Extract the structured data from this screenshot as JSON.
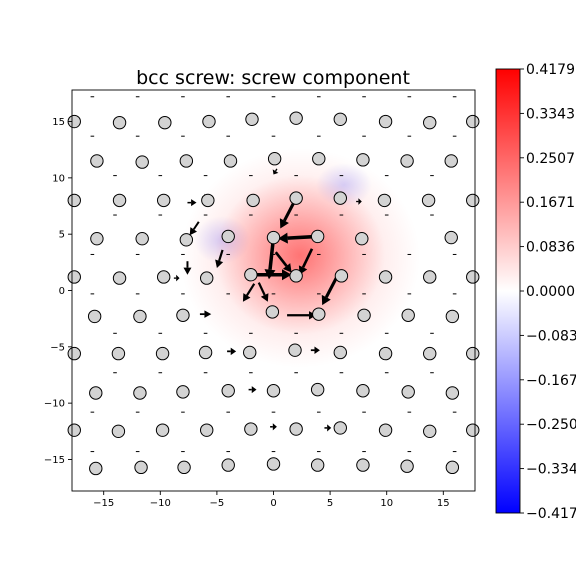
{
  "chart_data": {
    "type": "scatter",
    "title": "bcc screw: screw component",
    "xlabel": "",
    "ylabel": "",
    "xlim": [
      -17.8,
      17.8
    ],
    "ylim": [
      -17.8,
      17.8
    ],
    "x_ticks": [
      -15,
      -10,
      -5,
      0,
      5,
      10,
      15
    ],
    "y_ticks": [
      -15,
      -10,
      -5,
      0,
      5,
      10,
      15
    ],
    "x_tick_labels": [
      "−15",
      "−10",
      "−5",
      "0",
      "5",
      "10",
      "15"
    ],
    "y_tick_labels": [
      "−15",
      "−10",
      "−5",
      "0",
      "5",
      "10",
      "15"
    ],
    "grid": false,
    "colormap": "bwr",
    "colorbar": {
      "range": [
        -0.4179,
        0.4179
      ],
      "tick_labels": [
        "0.4179",
        "0.3343",
        "0.2507",
        "0.1671",
        "0.0836",
        "0.0000",
        "−0.0836",
        "−0.1671",
        "−0.2507",
        "−0.3343",
        "−0.4179"
      ]
    },
    "colors": {
      "positive": "#ff0000",
      "negative": "#0000ff",
      "atom_fill": "#d3d3d3",
      "atom_edge": "#000000",
      "arrow": "#000000"
    },
    "atoms": [
      [
        -17.6,
        15
      ],
      [
        -13.6,
        14.9
      ],
      [
        -9.6,
        14.9
      ],
      [
        -5.7,
        15
      ],
      [
        -1.9,
        15.2
      ],
      [
        2,
        15.3
      ],
      [
        5.9,
        15.2
      ],
      [
        9.9,
        15
      ],
      [
        13.8,
        14.9
      ],
      [
        17.6,
        15
      ],
      [
        -15.6,
        11.5
      ],
      [
        -11.6,
        11.4
      ],
      [
        -7.7,
        11.5
      ],
      [
        -3.8,
        11.5
      ],
      [
        0.1,
        11.7
      ],
      [
        4,
        11.7
      ],
      [
        7.9,
        11.6
      ],
      [
        11.8,
        11.5
      ],
      [
        15.7,
        11.5
      ],
      [
        -17.6,
        8
      ],
      [
        -13.6,
        8
      ],
      [
        -9.7,
        8
      ],
      [
        -5.8,
        8
      ],
      [
        -1.8,
        8
      ],
      [
        2,
        8.2
      ],
      [
        5.9,
        8.2
      ],
      [
        9.8,
        8
      ],
      [
        13.7,
        8
      ],
      [
        17.6,
        8
      ],
      [
        -15.6,
        4.6
      ],
      [
        -11.6,
        4.6
      ],
      [
        -7.7,
        4.5
      ],
      [
        -4,
        4.8
      ],
      [
        0,
        4.7
      ],
      [
        3.9,
        4.8
      ],
      [
        7.8,
        4.6
      ],
      [
        15.7,
        4.7
      ],
      [
        -17.6,
        1.2
      ],
      [
        -13.6,
        1.1
      ],
      [
        -9.7,
        1.2
      ],
      [
        -5.9,
        1.1
      ],
      [
        -2,
        1.4
      ],
      [
        2,
        1.3
      ],
      [
        6,
        1.3
      ],
      [
        9.9,
        1.2
      ],
      [
        13.8,
        1.2
      ],
      [
        17.6,
        1.2
      ],
      [
        -15.8,
        -2.3
      ],
      [
        -11.8,
        -2.3
      ],
      [
        -8,
        -2.2
      ],
      [
        -0.1,
        -1.9
      ],
      [
        4,
        -2.1
      ],
      [
        8,
        -2.2
      ],
      [
        11.9,
        -2.2
      ],
      [
        15.8,
        -2.3
      ],
      [
        -17.6,
        -5.6
      ],
      [
        -13.7,
        -5.6
      ],
      [
        -9.8,
        -5.6
      ],
      [
        -6,
        -5.5
      ],
      [
        -2.1,
        -5.5
      ],
      [
        1.9,
        -5.3
      ],
      [
        5.9,
        -5.5
      ],
      [
        9.9,
        -5.6
      ],
      [
        13.8,
        -5.6
      ],
      [
        17.6,
        -5.6
      ],
      [
        -15.7,
        -9.1
      ],
      [
        -11.8,
        -9.1
      ],
      [
        -8,
        -9
      ],
      [
        -4,
        -8.9
      ],
      [
        0,
        -8.9
      ],
      [
        3.9,
        -8.8
      ],
      [
        7.9,
        -8.9
      ],
      [
        11.9,
        -9
      ],
      [
        15.8,
        -9.1
      ],
      [
        -17.6,
        -12.4
      ],
      [
        -13.7,
        -12.5
      ],
      [
        -9.8,
        -12.4
      ],
      [
        -5.9,
        -12.4
      ],
      [
        -2,
        -12.3
      ],
      [
        2,
        -12.3
      ],
      [
        5.9,
        -12.2
      ],
      [
        9.9,
        -12.4
      ],
      [
        13.8,
        -12.5
      ],
      [
        17.6,
        -12.4
      ],
      [
        -15.7,
        -15.8
      ],
      [
        -11.7,
        -15.7
      ],
      [
        -7.9,
        -15.7
      ],
      [
        -4,
        -15.5
      ],
      [
        0,
        -15.4
      ],
      [
        3.9,
        -15.5
      ],
      [
        7.9,
        -15.5
      ],
      [
        11.8,
        -15.6
      ],
      [
        15.8,
        -15.7
      ]
    ],
    "arrows": [
      [
        -2,
        1.4,
        3.6,
        0,
        1.6
      ],
      [
        2,
        8.2,
        -1.4,
        -2.7,
        1.4
      ],
      [
        0,
        4.7,
        -0.4,
        -3.7,
        1.6
      ],
      [
        0.2,
        3.4,
        1.4,
        -1.8,
        1.2
      ],
      [
        3.9,
        4.8,
        -3.5,
        -0.2,
        1.6
      ],
      [
        3.4,
        3.7,
        -1.1,
        -2.3,
        1.2
      ],
      [
        5.8,
        1.6,
        -1.5,
        -2.9,
        1.4
      ],
      [
        -1.7,
        0.6,
        -1,
        -1.6,
        1
      ],
      [
        -1.3,
        0.7,
        0.8,
        -1.7,
        1
      ],
      [
        1.2,
        -2.2,
        2.6,
        0,
        1
      ],
      [
        -4.5,
        3.6,
        -0.5,
        -1.6,
        1
      ],
      [
        -6.6,
        6.1,
        -0.8,
        -1.2,
        0.9
      ],
      [
        -7.6,
        2.6,
        0,
        -1.2,
        0.9
      ],
      [
        -6.5,
        -2.1,
        1,
        0,
        0.8
      ],
      [
        3.3,
        -5.3,
        0.8,
        0,
        0.8
      ],
      [
        -4.1,
        -5.4,
        0.8,
        0,
        0.8
      ],
      [
        -7.6,
        7.8,
        0.8,
        0,
        0.7
      ],
      [
        -2.2,
        -8.8,
        0.7,
        0,
        0.7
      ],
      [
        -0.3,
        -12.1,
        0.6,
        0,
        0.7
      ],
      [
        4.5,
        -12.2,
        0.6,
        0,
        0.7
      ],
      [
        -8.8,
        1.1,
        0.5,
        0,
        0.6
      ],
      [
        7.3,
        7.9,
        0.5,
        0,
        0.6
      ],
      [
        -6.3,
        8.3,
        0.5,
        0,
        0.6
      ],
      [
        0.3,
        10.8,
        -0.3,
        -0.5,
        0.6
      ]
    ]
  }
}
